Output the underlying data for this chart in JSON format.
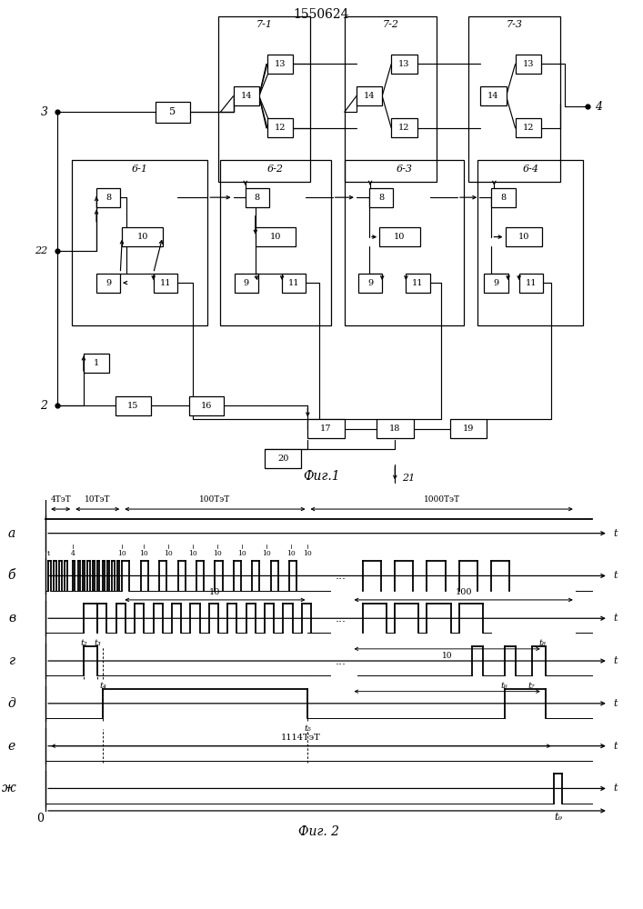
{
  "title": "1550624",
  "fig1_caption": "Фиг.1",
  "fig2_caption": "Фиг. 2",
  "bg_color": "#ffffff",
  "timing_labels": [
    "а",
    "б",
    "в",
    "г",
    "д",
    "е",
    "ж"
  ]
}
